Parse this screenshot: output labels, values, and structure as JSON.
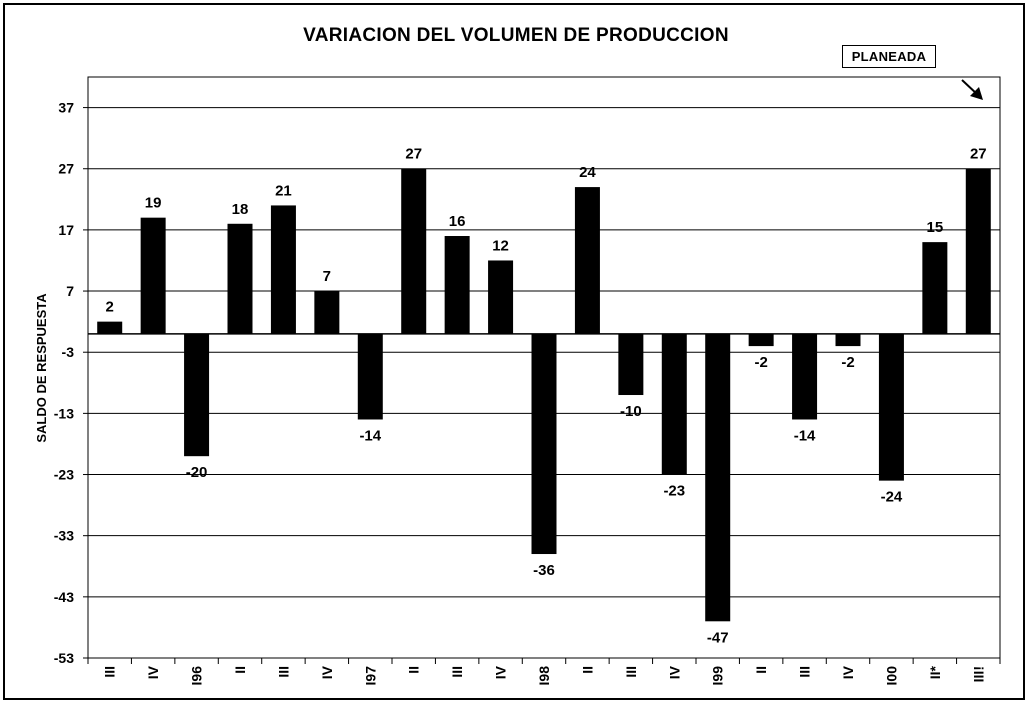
{
  "chart_data": {
    "type": "bar",
    "title": "VARIACION DEL VOLUMEN DE PRODUCCION",
    "ylabel": "SALDO DE RESPUESTA",
    "annotation": "PLANEADA",
    "ylim": [
      -53,
      42
    ],
    "yticks": [
      37,
      27,
      17,
      7,
      -3,
      -13,
      -23,
      -33,
      -43,
      -53
    ],
    "categories": [
      "III",
      "IV",
      "I96",
      "II",
      "III",
      "IV",
      "I97",
      "II",
      "III",
      "IV",
      "I98",
      "II",
      "III",
      "IV",
      "I99",
      "II",
      "III",
      "IV",
      "I00",
      "II*",
      "III!"
    ],
    "values": [
      2,
      19,
      -20,
      18,
      21,
      7,
      -14,
      27,
      16,
      12,
      -36,
      24,
      -10,
      -23,
      -47,
      -2,
      -14,
      -2,
      -24,
      15,
      27
    ],
    "bar_color": "#000000",
    "grid": true
  }
}
